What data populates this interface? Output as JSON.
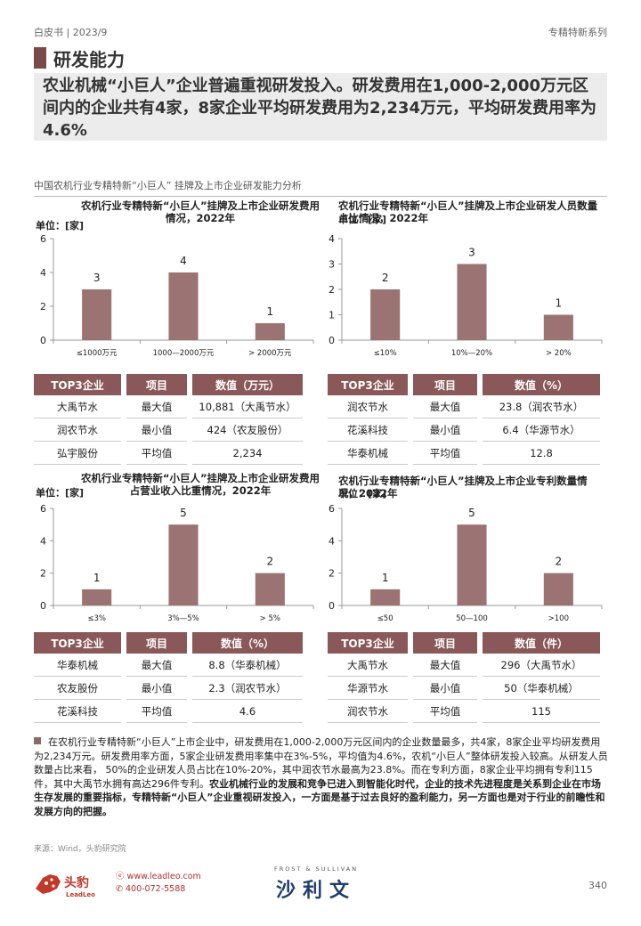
{
  "header": {
    "left": "白皮书 | 2023/9",
    "right": "专精特新系列"
  },
  "section_title": "研发能力",
  "headline": "农业机械“小巨人”企业普遍重视研发投入。研发费用在1,000-2,000万元区间内的企业共有4家，8家企业平均研发费用为2,234万元，平均研发费用率为4.6%",
  "subtitle": "中国农机行业专精特新“小巨人” 挂牌及上市企业研发能力分析",
  "charts": [
    {
      "title": "农机行业专精特新“小巨人”挂牌及上市企业研发费用情况，2022年",
      "unit": "单位：[家]"
    },
    {
      "title": "农机行业专精特新“小巨人”挂牌及上市企业研发人员数量占比情况，2022年",
      "unit": "单位：[家]"
    },
    {
      "title": "农机行业专精特新“小巨人”挂牌及上市企业研发费用占营业收入比重情况，2022年",
      "unit": "单位：[家]"
    },
    {
      "title": "农机行业专精特新“小巨人”挂牌及上市企业专利数量情况，2022年",
      "unit": "单位：[家]"
    }
  ],
  "chart_data": [
    {
      "type": "bar",
      "categories": [
        "≤1000万元",
        "1000—2000万元",
        "> 2000万元"
      ],
      "values": [
        3,
        4,
        1
      ],
      "ylim": [
        0,
        6
      ],
      "yticks": [
        0,
        2,
        4,
        6
      ],
      "color": "#9b7373"
    },
    {
      "type": "bar",
      "categories": [
        "≤10%",
        "10%—20%",
        "> 20%"
      ],
      "values": [
        2,
        3,
        1
      ],
      "ylim": [
        0,
        4
      ],
      "yticks": [
        0,
        1,
        2,
        3,
        4
      ],
      "color": "#9b7373"
    },
    {
      "type": "bar",
      "categories": [
        "≤3%",
        "3%—5%",
        "> 5%"
      ],
      "values": [
        1,
        5,
        2
      ],
      "ylim": [
        0,
        6
      ],
      "yticks": [
        0,
        2,
        4,
        6
      ],
      "color": "#9b7373"
    },
    {
      "type": "bar",
      "categories": [
        "≤50",
        "50—100",
        ">100"
      ],
      "values": [
        1,
        5,
        2
      ],
      "ylim": [
        0,
        6
      ],
      "yticks": [
        0,
        2,
        4,
        6
      ],
      "color": "#9b7373"
    }
  ],
  "tables": [
    {
      "h1": "TOP3企业",
      "h2": "项目",
      "h3": "数值（万元）",
      "rows": [
        [
          "大禹节水",
          "最大值",
          "10,881（大禹节水）"
        ],
        [
          "润农节水",
          "最小值",
          "424（农友股份）"
        ],
        [
          "弘宇股份",
          "平均值",
          "2,234"
        ]
      ]
    },
    {
      "h1": "TOP3企业",
      "h2": "项目",
      "h3": "数值（%）",
      "rows": [
        [
          "润农节水",
          "最大值",
          "23.8（润农节水）"
        ],
        [
          "花溪科技",
          "最小值",
          "6.4（华源节水）"
        ],
        [
          "华泰机械",
          "平均值",
          "12.8"
        ]
      ]
    },
    {
      "h1": "TOP3企业",
      "h2": "项目",
      "h3": "数值（%）",
      "rows": [
        [
          "华泰机械",
          "最大值",
          "8.8（华泰机械）"
        ],
        [
          "农友股份",
          "最小值",
          "2.3（润农节水）"
        ],
        [
          "花溪科技",
          "平均值",
          "4.6"
        ]
      ]
    },
    {
      "h1": "TOP3企业",
      "h2": "项目",
      "h3": "数值（件）",
      "rows": [
        [
          "大禹节水",
          "最大值",
          "296（大禹节水）"
        ],
        [
          "华源节水",
          "最小值",
          "50（华泰机械）"
        ],
        [
          "润农节水",
          "平均值",
          "115"
        ]
      ]
    }
  ],
  "bullet": {
    "normal": "在农机行业专精特新“小巨人”上市企业中，研发费用在1,000-2,000万元区间内的企业数量最多，共4家，8家企业平均研发费用为2,234万元。研发费用率方面，5家企业研发费用率集中在3%-5%，平均值为4.6%，农机“小巨人”整体研发投入较高。从研发人员数量占比来看， 50%的企业研发人员占比在10%-20%，其中润农节水最高为23.8%。而在专利方面，8家企业平均拥有专利115件，其中大禹节水拥有高达296件专利。",
    "bold": "农业机械行业的发展和竞争已进入到智能化时代，企业的技术先进程度是关系到企业在市场生存发展的重要指标，专精特新“小巨人”企业重视研发投入，一方面是基于过去良好的盈利能力，另一方面也是对于行业的前瞻性和发展方向的把握。"
  },
  "source": "来源：Wind，头豹研究院",
  "footer": {
    "logo_cn": "头豹",
    "logo_en": "LeadLeo",
    "website": "www.leadleo.com",
    "phone": "400-072-5588",
    "fs_small": "FROST & SULLIVAN",
    "fs_big": "沙利文",
    "page": "340"
  }
}
